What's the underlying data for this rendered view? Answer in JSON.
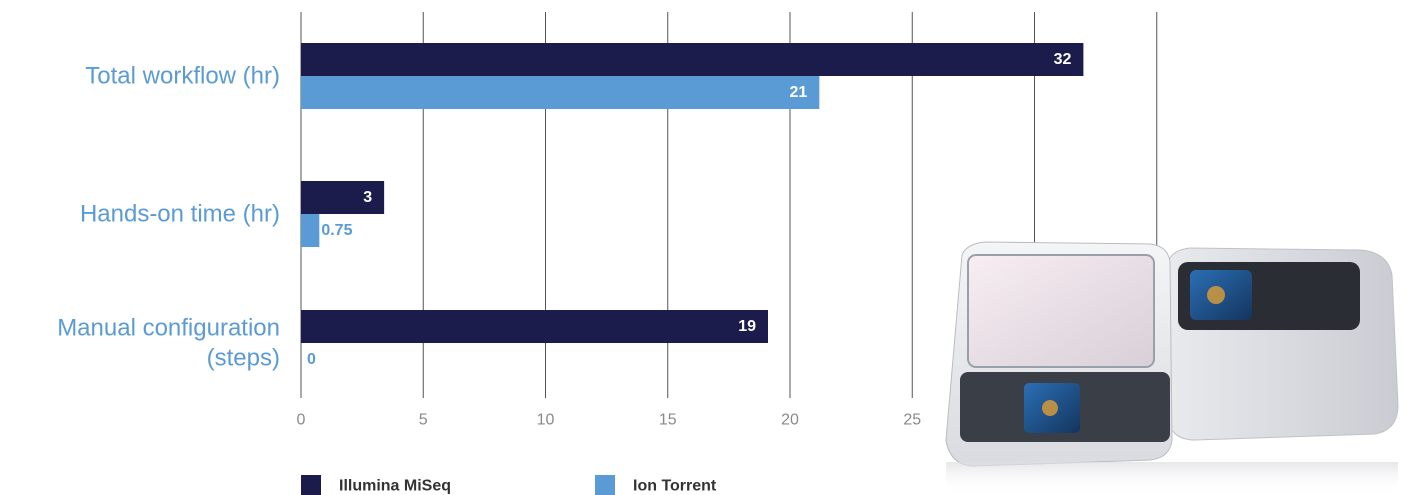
{
  "colors": {
    "illumina": "#1c1c4c",
    "ion": "#5b9bd5",
    "category_label": "#5b9bd5",
    "tick_label": "#8a8a8a",
    "grid": "#555555",
    "legend_text": "#333333",
    "data_label_inside": "#ffffff"
  },
  "chart_data": {
    "type": "bar",
    "orientation": "horizontal",
    "categories": [
      [
        "Total workflow (hr)"
      ],
      [
        "Hands-on time (hr)"
      ],
      [
        "Manual configuration",
        "(steps)"
      ]
    ],
    "series": [
      {
        "name": "Illumina MiSeq",
        "values": [
          32,
          3.4,
          19.1
        ],
        "labels": [
          "32",
          "3",
          "19"
        ]
      },
      {
        "name": "Ion Torrent",
        "values": [
          21.2,
          0.75,
          0
        ],
        "labels": [
          "21",
          "0.75",
          "0"
        ]
      }
    ],
    "xticks": [
      0,
      5,
      10,
      15,
      20,
      25
    ],
    "xlim": [
      0,
      35
    ],
    "grid": true,
    "legend_position": "bottom"
  }
}
